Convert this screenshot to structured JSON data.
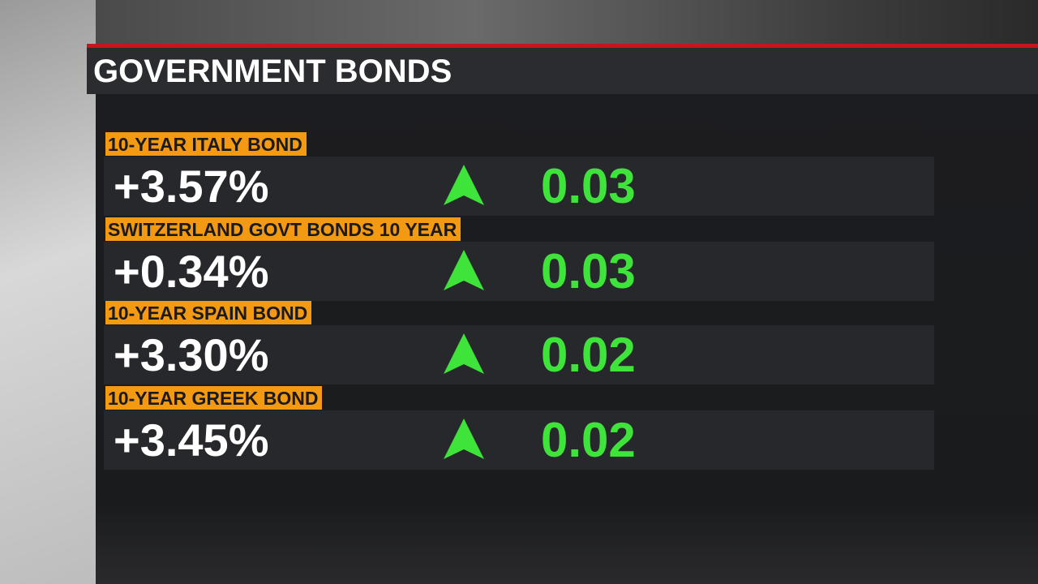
{
  "header": {
    "title": "GOVERNMENT BONDS"
  },
  "rows": [
    {
      "label": "10-YEAR ITALY BOND",
      "value": "+3.57%",
      "change": "0.03"
    },
    {
      "label": "SWITZERLAND GOVT BONDS 10 YEAR",
      "value": "+0.34%",
      "change": "0.03"
    },
    {
      "label": "10-YEAR SPAIN BOND",
      "value": "+3.30%",
      "change": "0.02"
    },
    {
      "label": "10-YEAR GREEK BOND",
      "value": "+3.45%",
      "change": "0.02"
    }
  ]
}
